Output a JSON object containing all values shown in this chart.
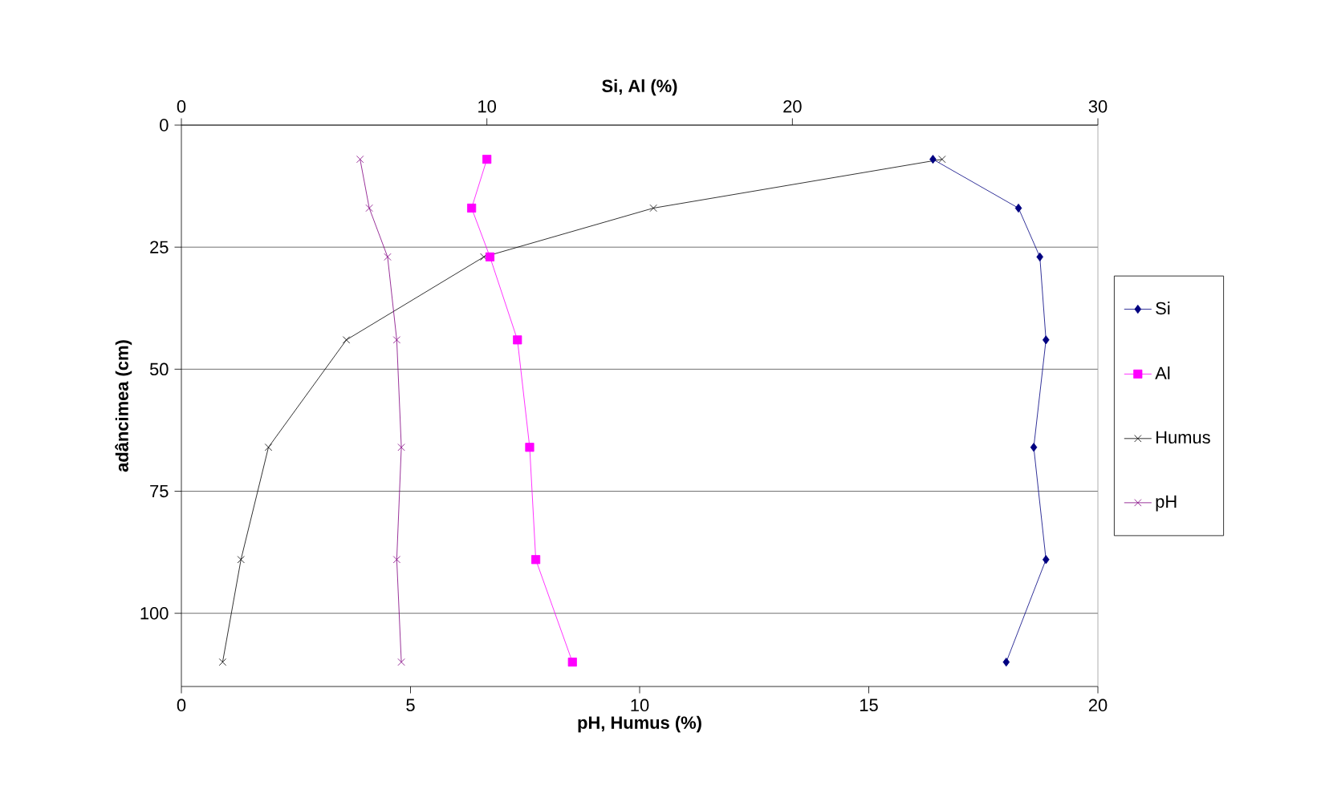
{
  "chart_data": {
    "type": "line",
    "xlabel": "pH, Humus (%)",
    "x2label": "Si, Al (%)",
    "ylabel": "adâncimea (cm)",
    "xlim": [
      0,
      20
    ],
    "xticks": [
      0,
      5,
      10,
      15,
      20
    ],
    "x2lim": [
      0,
      30
    ],
    "x2ticks": [
      0,
      10,
      20,
      30
    ],
    "ylim": [
      115,
      0
    ],
    "yticks": [
      0,
      25,
      50,
      75,
      100
    ],
    "grid": "y",
    "legend": "right",
    "line_style": "solid",
    "series": [
      {
        "name": "Si",
        "color": "#000080",
        "axis": "x2",
        "marker": "diamond",
        "x": [
          24.6,
          27.4,
          28.1,
          28.3,
          27.9,
          28.3,
          27.0
        ],
        "values": [
          7,
          17,
          27,
          44,
          66,
          89,
          110
        ]
      },
      {
        "name": "Al",
        "color": "#ff00ff",
        "axis": "x2",
        "marker": "square",
        "x": [
          10.0,
          9.5,
          10.1,
          11.0,
          11.4,
          11.6,
          12.8
        ],
        "values": [
          7,
          17,
          27,
          44,
          66,
          89,
          110
        ]
      },
      {
        "name": "Humus",
        "color": "#000000",
        "marker": "cross",
        "x": [
          16.6,
          10.3,
          6.6,
          3.6,
          1.9,
          1.3,
          0.9
        ],
        "values": [
          7,
          17,
          27,
          44,
          66,
          89,
          110
        ]
      },
      {
        "name": "pH",
        "color": "#800080",
        "marker": "cross",
        "x": [
          3.9,
          4.1,
          4.5,
          4.7,
          4.8,
          4.7,
          4.8
        ],
        "values": [
          7,
          17,
          27,
          44,
          66,
          89,
          110
        ]
      }
    ]
  }
}
